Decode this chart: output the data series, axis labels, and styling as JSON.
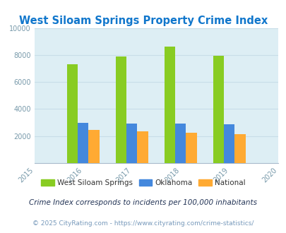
{
  "title": "West Siloam Springs Property Crime Index",
  "years": [
    2015,
    2016,
    2017,
    2018,
    2019,
    2020
  ],
  "data_years": [
    2016,
    2017,
    2018,
    2019
  ],
  "west_siloam": [
    7300,
    7900,
    8600,
    7950
  ],
  "oklahoma": [
    3000,
    2900,
    2900,
    2850
  ],
  "national": [
    2450,
    2350,
    2230,
    2130
  ],
  "color_west_siloam": "#88cc22",
  "color_oklahoma": "#4488dd",
  "color_national": "#ffaa33",
  "ylim": [
    0,
    10000
  ],
  "yticks": [
    0,
    2000,
    4000,
    6000,
    8000,
    10000
  ],
  "background_color": "#ddeef4",
  "grid_color": "#c8dde8",
  "title_color": "#1177cc",
  "legend_color_west": "#88cc22",
  "legend_color_ok": "#4488dd",
  "legend_color_nat": "#ffaa33",
  "legend_label_west": "West Siloam Springs",
  "legend_label_ok": "Oklahoma",
  "legend_label_nat": "National",
  "footnote1": "Crime Index corresponds to incidents per 100,000 inhabitants",
  "footnote2": "© 2025 CityRating.com - https://www.cityrating.com/crime-statistics/",
  "bar_width": 0.22
}
